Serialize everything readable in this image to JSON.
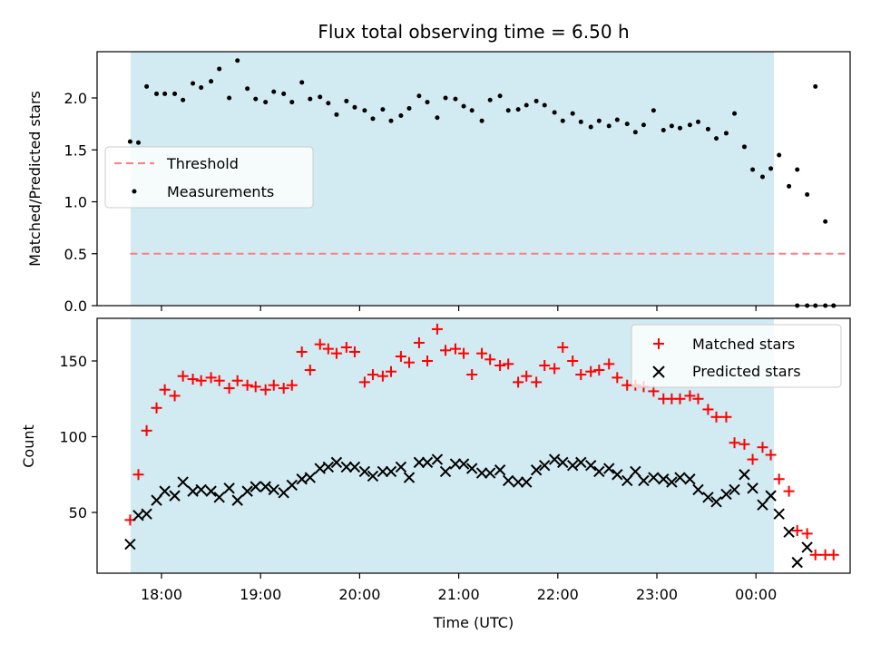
{
  "chart_data": [
    {
      "type": "scatter",
      "title": "Flux total observing time = 6.50 h",
      "xlabel": "",
      "ylabel": "Matched/Predicted stars",
      "ylim": [
        0,
        2.47
      ],
      "yticks": [
        "0.0",
        "0.5",
        "1.0",
        "1.5",
        "2.0"
      ],
      "grid": false,
      "legend_location": "center-left",
      "observing_window_color": "#add8e6",
      "series": [
        {
          "name": "Threshold",
          "style": "dashed-line",
          "color": "#ff7f7f",
          "x": [
            "17:41",
            "00:57"
          ],
          "y": [
            0.5,
            0.5
          ]
        },
        {
          "name": "Measurements",
          "style": "dot",
          "color": "#000000",
          "x": [
            "17:41",
            "17:46",
            "17:51",
            "17:57",
            "18:02",
            "18:08",
            "18:13",
            "18:19",
            "18:24",
            "18:30",
            "18:35",
            "18:41",
            "18:46",
            "18:52",
            "18:57",
            "19:03",
            "19:08",
            "19:14",
            "19:19",
            "19:25",
            "19:30",
            "19:36",
            "19:41",
            "19:46",
            "19:52",
            "19:57",
            "20:03",
            "20:08",
            "20:14",
            "20:19",
            "20:25",
            "20:30",
            "20:36",
            "20:41",
            "20:47",
            "20:52",
            "20:58",
            "21:03",
            "21:08",
            "21:14",
            "21:19",
            "21:25",
            "21:30",
            "21:36",
            "21:41",
            "21:47",
            "21:52",
            "21:58",
            "22:03",
            "22:09",
            "22:14",
            "22:20",
            "22:25",
            "22:31",
            "22:36",
            "22:42",
            "22:47",
            "22:52",
            "22:58",
            "23:04",
            "23:09",
            "23:14",
            "23:20",
            "23:25",
            "23:31",
            "23:36",
            "23:42",
            "23:47",
            "23:53",
            "23:58",
            "00:04",
            "00:09",
            "00:14",
            "00:20",
            "00:25",
            "00:31",
            "00:36",
            "00:42",
            "00:47"
          ],
          "y": [
            1.58,
            1.57,
            2.11,
            2.04,
            2.04,
            2.04,
            1.98,
            2.14,
            2.1,
            2.16,
            2.28,
            2.0,
            2.36,
            2.09,
            1.99,
            1.96,
            2.06,
            2.04,
            1.96,
            2.15,
            1.99,
            2.01,
            1.95,
            1.84,
            1.97,
            1.91,
            1.88,
            1.8,
            1.89,
            1.78,
            1.83,
            1.9,
            2.02,
            1.96,
            1.81,
            2.0,
            1.99,
            1.92,
            1.88,
            1.78,
            1.98,
            2.02,
            1.88,
            1.89,
            1.93,
            1.97,
            1.93,
            1.86,
            1.78,
            1.85,
            1.77,
            1.72,
            1.78,
            1.73,
            1.79,
            1.75,
            1.67,
            1.74,
            1.88,
            1.69,
            1.73,
            1.71,
            1.74,
            1.77,
            1.7,
            1.61,
            1.66,
            1.85,
            1.53,
            1.31,
            1.24,
            1.32,
            1.45,
            1.15,
            1.31,
            1.07,
            2.11,
            0.81,
            0.0
          ]
        },
        {
          "name": "",
          "style": "dot",
          "color": "#000000",
          "x": [
            "00:25",
            "00:31",
            "00:36",
            "00:42",
            "00:47"
          ],
          "y": [
            0.0,
            0.0,
            0.0,
            0.0,
            0.0
          ]
        }
      ]
    },
    {
      "type": "scatter",
      "xlabel": "Time (UTC)",
      "ylabel": "Count",
      "ylim": [
        10,
        177
      ],
      "yticks": [
        "50",
        "100",
        "150"
      ],
      "xticks": [
        "18:00",
        "19:00",
        "20:00",
        "21:00",
        "22:00",
        "23:00",
        "00:00"
      ],
      "grid": false,
      "legend_location": "top-right",
      "observing_window_color": "#add8e6",
      "series": [
        {
          "name": "Matched stars",
          "marker": "plus",
          "color": "#ff0000",
          "x": [
            "17:41",
            "17:46",
            "17:51",
            "17:57",
            "18:02",
            "18:08",
            "18:13",
            "18:19",
            "18:24",
            "18:30",
            "18:35",
            "18:41",
            "18:46",
            "18:52",
            "18:57",
            "19:03",
            "19:08",
            "19:14",
            "19:19",
            "19:25",
            "19:30",
            "19:36",
            "19:41",
            "19:46",
            "19:52",
            "19:57",
            "20:03",
            "20:08",
            "20:14",
            "20:19",
            "20:25",
            "20:30",
            "20:36",
            "20:41",
            "20:47",
            "20:52",
            "20:58",
            "21:03",
            "21:08",
            "21:14",
            "21:19",
            "21:25",
            "21:30",
            "21:36",
            "21:41",
            "21:47",
            "21:52",
            "21:58",
            "22:03",
            "22:09",
            "22:14",
            "22:20",
            "22:25",
            "22:31",
            "22:36",
            "22:42",
            "22:47",
            "22:52",
            "22:58",
            "23:04",
            "23:09",
            "23:14",
            "23:20",
            "23:25",
            "23:31",
            "23:36",
            "23:42",
            "23:47",
            "23:53",
            "23:58",
            "00:04",
            "00:09",
            "00:14",
            "00:20",
            "00:25",
            "00:31",
            "00:36",
            "00:42",
            "00:47"
          ],
          "y": [
            45,
            75,
            104,
            119,
            131,
            127,
            140,
            138,
            137,
            139,
            137,
            132,
            137,
            134,
            133,
            131,
            134,
            132,
            134,
            156,
            144,
            161,
            158,
            155,
            159,
            156,
            136,
            141,
            140,
            143,
            153,
            149,
            162,
            150,
            171,
            157,
            158,
            155,
            141,
            155,
            151,
            147,
            148,
            136,
            140,
            136,
            147,
            145,
            159,
            150,
            141,
            143,
            144,
            148,
            139,
            134,
            134,
            133,
            130,
            125,
            125,
            125,
            127,
            125,
            118,
            113,
            113,
            96,
            95,
            85,
            93,
            88,
            72,
            64,
            38,
            36,
            22,
            22,
            22
          ]
        },
        {
          "name": "Predicted stars",
          "marker": "x",
          "color": "#000000",
          "x": [
            "17:41",
            "17:46",
            "17:51",
            "17:57",
            "18:02",
            "18:08",
            "18:13",
            "18:19",
            "18:24",
            "18:30",
            "18:35",
            "18:41",
            "18:46",
            "18:52",
            "18:57",
            "19:03",
            "19:08",
            "19:14",
            "19:19",
            "19:25",
            "19:30",
            "19:36",
            "19:41",
            "19:46",
            "19:52",
            "19:57",
            "20:03",
            "20:08",
            "20:14",
            "20:19",
            "20:25",
            "20:30",
            "20:36",
            "20:41",
            "20:47",
            "20:52",
            "20:58",
            "21:03",
            "21:08",
            "21:14",
            "21:19",
            "21:25",
            "21:30",
            "21:36",
            "21:41",
            "21:47",
            "21:52",
            "21:58",
            "22:03",
            "22:09",
            "22:14",
            "22:20",
            "22:25",
            "22:31",
            "22:36",
            "22:42",
            "22:47",
            "22:52",
            "22:58",
            "23:04",
            "23:09",
            "23:14",
            "23:20",
            "23:25",
            "23:31",
            "23:36",
            "23:42",
            "23:47",
            "23:53",
            "23:58",
            "00:04",
            "00:09",
            "00:14",
            "00:20",
            "00:25"
          ],
          "y": [
            29,
            48,
            49,
            58,
            64,
            61,
            70,
            64,
            65,
            64,
            60,
            66,
            58,
            64,
            67,
            67,
            65,
            63,
            68,
            72,
            73,
            79,
            80,
            83,
            80,
            80,
            77,
            74,
            77,
            77,
            80,
            73,
            83,
            83,
            85,
            77,
            82,
            82,
            79,
            76,
            76,
            78,
            71,
            70,
            70,
            78,
            81,
            85,
            83,
            81,
            83,
            81,
            77,
            79,
            75,
            71,
            77,
            71,
            73,
            72,
            70,
            73,
            72,
            65,
            60,
            57,
            62,
            65,
            75,
            66,
            55,
            61,
            49,
            37,
            17
          ]
        },
        {
          "name": "",
          "marker": "x",
          "color": "#000000",
          "x": [
            "00:31"
          ],
          "y": [
            27
          ]
        }
      ]
    }
  ]
}
